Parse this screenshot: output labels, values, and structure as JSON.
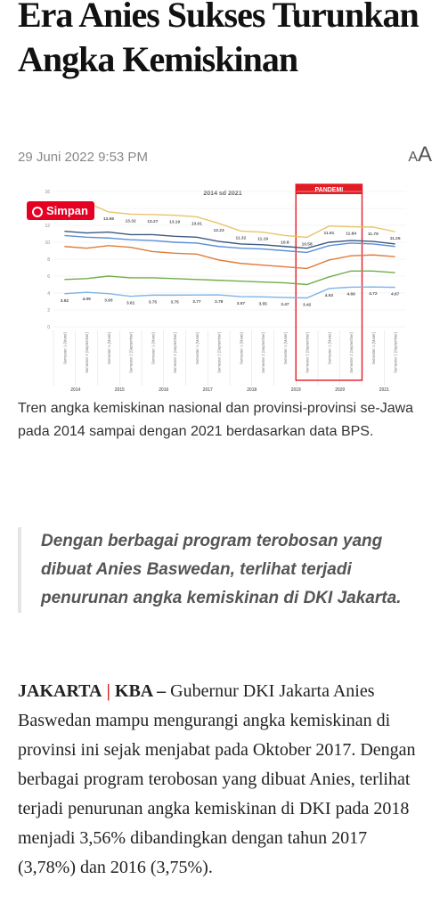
{
  "header": {
    "title": "Era Anies Sukses Turunkan Angka Kemiskinan",
    "date": "29 Juni 2022 9:53 PM",
    "font_button": [
      "A",
      "A"
    ]
  },
  "figure": {
    "save_button": "Simpan",
    "chart_data": {
      "type": "line",
      "title": "2014 sd 2021",
      "categories": [
        "Semester 1 (Maret)",
        "Semester 2 (September)",
        "Semester 1 (Maret)",
        "Semester 2 (September)",
        "Semester 1 (Maret)",
        "Semester 2 (September)",
        "Semester 1 (Maret)",
        "Semester 2 (September)",
        "Semester 1 (Maret)",
        "Semester 2 (September)",
        "Semester 1 (Maret)",
        "Semester 2 (September)",
        "Semester 1 (Maret)",
        "Semester 2 (September)",
        "Semester 1 (Maret)",
        "Semester 2 (September)"
      ],
      "years": [
        "2014",
        "2015",
        "2016",
        "2017",
        "2018",
        "2019",
        "2020",
        "2021"
      ],
      "ylim": [
        0,
        16
      ],
      "yticks": [
        0,
        2,
        4,
        6,
        8,
        10,
        12,
        14,
        16
      ],
      "highlight": {
        "label": "PANDEMI",
        "from": 11,
        "to": 13
      },
      "series": [
        {
          "color": "#e9c46a",
          "values": [
            14.5,
            14.7,
            13.58,
            13.32,
            13.27,
            13.19,
            13.01,
            12.23,
            11.32,
            11.19,
            10.8,
            10.58,
            11.91,
            11.84,
            11.79,
            11.25
          ],
          "value_labels": [
            null,
            null,
            "13.58",
            "13.32",
            "13.27",
            "13.19",
            "13.01",
            "12.23",
            "11.32",
            "11.19",
            "10.8",
            "10.58",
            "11.91",
            "11.84",
            "11.79",
            "11.25"
          ]
        },
        {
          "color": "#3d5a80",
          "values": [
            11.3,
            11.1,
            11.2,
            10.9,
            10.9,
            10.7,
            10.6,
            10.1,
            9.8,
            9.7,
            9.5,
            9.3,
            10.0,
            10.2,
            10.1,
            9.8
          ]
        },
        {
          "color": "#5b8fd6",
          "values": [
            10.8,
            10.6,
            10.5,
            10.3,
            10.2,
            10.0,
            9.9,
            9.5,
            9.3,
            9.2,
            9.0,
            8.8,
            9.6,
            9.9,
            9.8,
            9.5
          ]
        },
        {
          "color": "#e07b39",
          "values": [
            9.5,
            9.3,
            9.6,
            9.4,
            8.9,
            8.7,
            8.6,
            7.9,
            7.5,
            7.3,
            7.1,
            6.9,
            7.9,
            8.4,
            8.5,
            8.3
          ]
        },
        {
          "color": "#70ad47",
          "values": [
            5.6,
            5.7,
            6.0,
            5.8,
            5.8,
            5.7,
            5.6,
            5.5,
            5.4,
            5.3,
            5.2,
            5.0,
            5.9,
            6.6,
            6.6,
            6.4
          ]
        },
        {
          "color": "#7fb3e6",
          "values": [
            3.92,
            4.09,
            3.93,
            3.61,
            3.75,
            3.75,
            3.77,
            3.78,
            3.57,
            3.55,
            3.47,
            3.42,
            4.53,
            4.69,
            4.72,
            4.67
          ],
          "value_labels": [
            "3.92",
            "4.09",
            "3.93",
            "3.61",
            "3.75",
            "3.75",
            "3.77",
            "3.78",
            "3.57",
            "3.55",
            "3.47",
            "3.42",
            "4.53",
            "4.69",
            "4.72",
            "4.67"
          ]
        }
      ]
    },
    "caption": "Tren angka kemiskinan nasional dan provinsi-provinsi se-Jawa pada 2014 sampai dengan 2021 berdasarkan data BPS."
  },
  "quote": "Dengan berbagai program terobosan yang dibuat Anies Baswedan, terlihat terjadi penurunan angka kemiskinan di DKI Jakarta.",
  "body": {
    "dateline": "JAKARTA",
    "separator": "|",
    "source": "KBA –",
    "text": "Gubernur DKI Jakarta Anies Baswedan mampu mengurangi angka kemiskinan di provinsi ini sejak menjabat pada Oktober 2017. Dengan berbagai program terobosan yang dibuat Anies, terlihat terjadi penurunan angka kemiskinan di DKI pada 2018 menjadi 3,56% dibandingkan dengan tahun 2017 (3,78%) dan 2016 (3,75%)."
  }
}
